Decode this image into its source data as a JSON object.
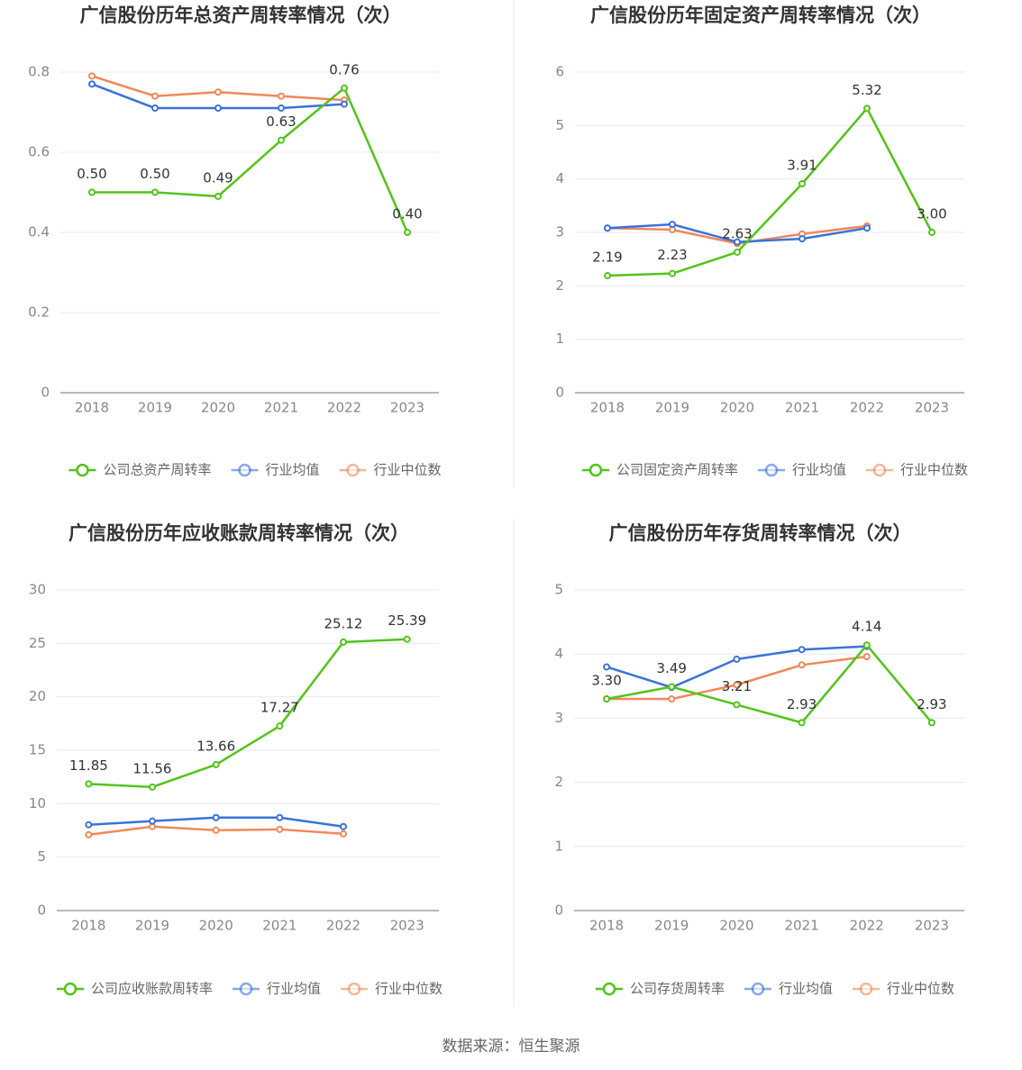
{
  "chart_data": [
    {
      "type": "line",
      "title": "广信股份历年总资产周转率情况（次）",
      "categories": [
        "2018",
        "2019",
        "2020",
        "2021",
        "2022",
        "2023"
      ],
      "ylim": [
        0,
        0.8
      ],
      "yticks": [
        0,
        0.2,
        0.4,
        0.6,
        0.8
      ],
      "grid": true,
      "series": [
        {
          "name": "公司总资产周转率",
          "color": "#52c41a",
          "values": [
            0.5,
            0.5,
            0.49,
            0.63,
            0.76,
            0.4
          ],
          "value_labels": [
            "0.50",
            "0.50",
            "0.49",
            "0.63",
            "0.76",
            "0.40"
          ]
        },
        {
          "name": "行业均值",
          "color": "#3b72d9",
          "values": [
            0.77,
            0.71,
            0.71,
            0.71,
            0.72,
            null
          ]
        },
        {
          "name": "行业中位数",
          "color": "#f0885a",
          "values": [
            0.79,
            0.74,
            0.75,
            0.74,
            0.73,
            null
          ]
        }
      ]
    },
    {
      "type": "line",
      "title": "广信股份历年固定资产周转率情况（次）",
      "categories": [
        "2018",
        "2019",
        "2020",
        "2021",
        "2022",
        "2023"
      ],
      "ylim": [
        0,
        6
      ],
      "yticks": [
        0,
        1,
        2,
        3,
        4,
        5,
        6
      ],
      "grid": true,
      "series": [
        {
          "name": "公司固定资产周转率",
          "color": "#52c41a",
          "values": [
            2.19,
            2.23,
            2.63,
            3.91,
            5.32,
            3.0
          ],
          "value_labels": [
            "2.19",
            "2.23",
            "2.63",
            "3.91",
            "5.32",
            "3.00"
          ]
        },
        {
          "name": "行业均值",
          "color": "#3b72d9",
          "values": [
            3.08,
            3.15,
            2.82,
            2.88,
            3.08,
            null
          ]
        },
        {
          "name": "行业中位数",
          "color": "#f0885a",
          "values": [
            3.08,
            3.05,
            2.79,
            2.97,
            3.12,
            null
          ]
        }
      ]
    },
    {
      "type": "line",
      "title": "广信股份历年应收账款周转率情况（次）",
      "categories": [
        "2018",
        "2019",
        "2020",
        "2021",
        "2022",
        "2023"
      ],
      "ylim": [
        0,
        30
      ],
      "yticks": [
        0,
        5,
        10,
        15,
        20,
        25,
        30
      ],
      "grid": true,
      "series": [
        {
          "name": "公司应收账款周转率",
          "color": "#52c41a",
          "values": [
            11.85,
            11.56,
            13.66,
            17.27,
            25.12,
            25.39
          ],
          "value_labels": [
            "11.85",
            "11.56",
            "13.66",
            "17.27",
            "25.12",
            "25.39"
          ]
        },
        {
          "name": "行业均值",
          "color": "#3b72d9",
          "values": [
            8.03,
            8.37,
            8.7,
            8.7,
            7.86,
            null
          ]
        },
        {
          "name": "行业中位数",
          "color": "#f0885a",
          "values": [
            7.1,
            7.86,
            7.52,
            7.6,
            7.18,
            null
          ]
        }
      ]
    },
    {
      "type": "line",
      "title": "广信股份历年存货周转率情况（次）",
      "categories": [
        "2018",
        "2019",
        "2020",
        "2021",
        "2022",
        "2023"
      ],
      "ylim": [
        0,
        5
      ],
      "yticks": [
        0,
        1,
        2,
        3,
        4,
        5
      ],
      "grid": true,
      "series": [
        {
          "name": "公司存货周转率",
          "color": "#52c41a",
          "values": [
            3.3,
            3.49,
            3.21,
            2.93,
            4.14,
            2.93
          ],
          "value_labels": [
            "3.30",
            "3.49",
            "3.21",
            "2.93",
            "4.14",
            "2.93"
          ]
        },
        {
          "name": "行业均值",
          "color": "#3b72d9",
          "values": [
            3.8,
            3.48,
            3.92,
            4.07,
            4.12,
            null
          ]
        },
        {
          "name": "行业中位数",
          "color": "#f0885a",
          "values": [
            3.3,
            3.3,
            3.52,
            3.83,
            3.96,
            null
          ]
        }
      ]
    }
  ],
  "source": "数据来源：恒生聚源"
}
